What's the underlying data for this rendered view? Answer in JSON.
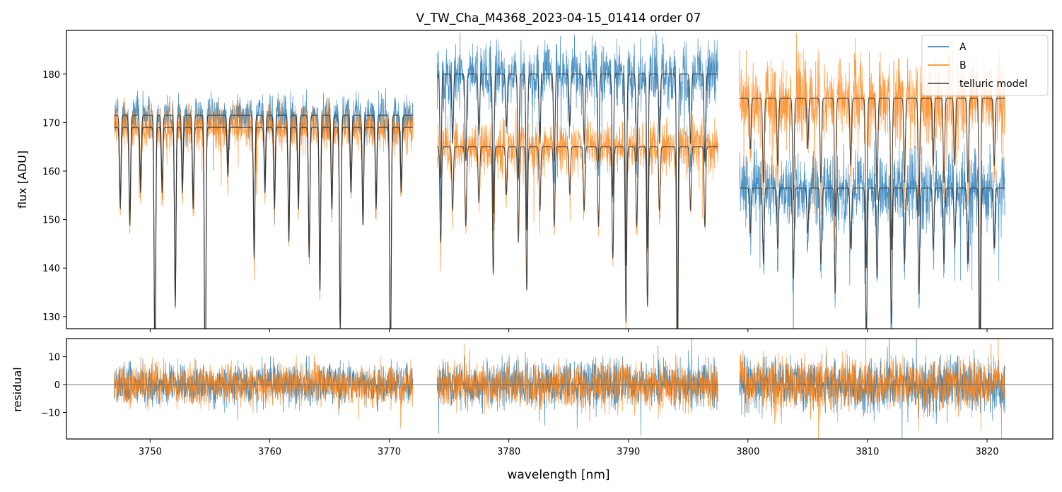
{
  "colors": {
    "A": "#1f77b4",
    "B": "#ff7f0e",
    "model": "#333333",
    "zero_line": "#666666"
  },
  "chart_data": {
    "type": "line",
    "title": "V_TW_Cha_M4368_2023-04-15_01414  order 07",
    "xlabel": "wavelength [nm]",
    "xlim": [
      3743.0,
      3825.5
    ],
    "xticks": [
      3750,
      3760,
      3770,
      3780,
      3790,
      3800,
      3810,
      3820
    ],
    "xtick_labels": [
      "3750",
      "3760",
      "3770",
      "3780",
      "3790",
      "3800",
      "3810",
      "3820"
    ],
    "segments": [
      [
        3747.0,
        3772.0
      ],
      [
        3774.0,
        3797.5
      ],
      [
        3799.3,
        3821.5
      ]
    ],
    "top_panel": {
      "ylabel": "flux [ADU]",
      "ylim": [
        127.5,
        189
      ],
      "yticks": [
        130,
        140,
        150,
        160,
        170,
        180
      ],
      "ytick_labels": [
        "130",
        "140",
        "150",
        "160",
        "170",
        "180"
      ],
      "legend": [
        "A",
        "B",
        "telluric model"
      ],
      "legend_loc": "upper right",
      "series": [
        {
          "name": "A",
          "color_key": "A",
          "continuum_by_segment": [
            171.5,
            180.0,
            156.5
          ],
          "noise_amplitude_by_segment": [
            4,
            6,
            7
          ]
        },
        {
          "name": "B",
          "color_key": "B",
          "continuum_by_segment": [
            169.0,
            165.0,
            175.0
          ],
          "noise_amplitude_by_segment": [
            4,
            5,
            8
          ]
        }
      ],
      "telluric_lines": [
        {
          "wl": 3747.5,
          "depth": 0.1
        },
        {
          "wl": 3748.3,
          "depth": 0.12
        },
        {
          "wl": 3749.2,
          "depth": 0.08
        },
        {
          "wl": 3750.4,
          "depth": 0.3
        },
        {
          "wl": 3751.0,
          "depth": 0.08
        },
        {
          "wl": 3752.1,
          "depth": 0.22
        },
        {
          "wl": 3752.7,
          "depth": 0.08
        },
        {
          "wl": 3753.6,
          "depth": 0.1
        },
        {
          "wl": 3754.6,
          "depth": 0.35
        },
        {
          "wl": 3756.5,
          "depth": 0.06
        },
        {
          "wl": 3758.7,
          "depth": 0.16
        },
        {
          "wl": 3759.6,
          "depth": 0.08
        },
        {
          "wl": 3760.4,
          "depth": 0.1
        },
        {
          "wl": 3761.6,
          "depth": 0.14
        },
        {
          "wl": 3762.4,
          "depth": 0.1
        },
        {
          "wl": 3763.3,
          "depth": 0.16
        },
        {
          "wl": 3764.2,
          "depth": 0.2
        },
        {
          "wl": 3765.2,
          "depth": 0.1
        },
        {
          "wl": 3765.9,
          "depth": 0.25
        },
        {
          "wl": 3766.8,
          "depth": 0.08
        },
        {
          "wl": 3767.8,
          "depth": 0.12
        },
        {
          "wl": 3768.9,
          "depth": 0.1
        },
        {
          "wl": 3770.1,
          "depth": 0.3
        },
        {
          "wl": 3771.0,
          "depth": 0.08
        },
        {
          "wl": 3774.3,
          "depth": 0.12
        },
        {
          "wl": 3775.3,
          "depth": 0.08
        },
        {
          "wl": 3776.4,
          "depth": 0.1
        },
        {
          "wl": 3777.5,
          "depth": 0.07
        },
        {
          "wl": 3778.7,
          "depth": 0.16
        },
        {
          "wl": 3779.8,
          "depth": 0.06
        },
        {
          "wl": 3780.8,
          "depth": 0.12
        },
        {
          "wl": 3781.5,
          "depth": 0.18
        },
        {
          "wl": 3782.6,
          "depth": 0.08
        },
        {
          "wl": 3783.8,
          "depth": 0.1
        },
        {
          "wl": 3785.1,
          "depth": 0.06
        },
        {
          "wl": 3786.3,
          "depth": 0.08
        },
        {
          "wl": 3787.5,
          "depth": 0.1
        },
        {
          "wl": 3788.7,
          "depth": 0.14
        },
        {
          "wl": 3789.8,
          "depth": 0.22
        },
        {
          "wl": 3790.7,
          "depth": 0.1
        },
        {
          "wl": 3791.6,
          "depth": 0.2
        },
        {
          "wl": 3792.6,
          "depth": 0.08
        },
        {
          "wl": 3794.1,
          "depth": 0.3
        },
        {
          "wl": 3795.2,
          "depth": 0.08
        },
        {
          "wl": 3796.4,
          "depth": 0.1
        },
        {
          "wl": 3800.2,
          "depth": 0.06
        },
        {
          "wl": 3801.3,
          "depth": 0.1
        },
        {
          "wl": 3802.5,
          "depth": 0.08
        },
        {
          "wl": 3803.8,
          "depth": 0.12
        },
        {
          "wl": 3805.0,
          "depth": 0.06
        },
        {
          "wl": 3806.1,
          "depth": 0.1
        },
        {
          "wl": 3807.3,
          "depth": 0.14
        },
        {
          "wl": 3808.6,
          "depth": 0.08
        },
        {
          "wl": 3809.9,
          "depth": 0.2
        },
        {
          "wl": 3810.8,
          "depth": 0.12
        },
        {
          "wl": 3812.0,
          "depth": 0.18
        },
        {
          "wl": 3813.1,
          "depth": 0.1
        },
        {
          "wl": 3814.3,
          "depth": 0.14
        },
        {
          "wl": 3815.5,
          "depth": 0.08
        },
        {
          "wl": 3816.4,
          "depth": 0.1
        },
        {
          "wl": 3817.3,
          "depth": 0.08
        },
        {
          "wl": 3818.4,
          "depth": 0.1
        },
        {
          "wl": 3819.4,
          "depth": 0.3
        },
        {
          "wl": 3820.6,
          "depth": 0.08
        }
      ]
    },
    "bottom_panel": {
      "ylabel": "residual",
      "ylim": [
        -19.5,
        16.5
      ],
      "yticks": [
        -10,
        0,
        10
      ],
      "ytick_labels": [
        "−10",
        "0",
        "10"
      ],
      "zero_line": 0,
      "residual_amplitude_by_segment": [
        6,
        7,
        8
      ]
    }
  }
}
